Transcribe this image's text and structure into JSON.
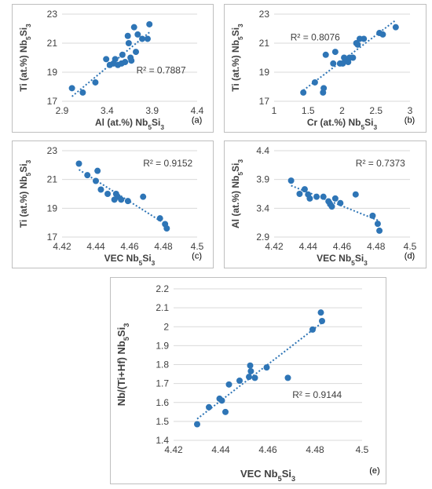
{
  "chart_data": [
    {
      "id": "a",
      "type": "scatter",
      "panel_label": "(a)",
      "xlabel": "Al (at.%) Nb5Si3",
      "ylabel": "Ti (at.%) Nb5Si3",
      "xlim": [
        2.9,
        4.4
      ],
      "ylim": [
        17,
        23
      ],
      "xticks": [
        "2.9",
        "3.4",
        "3.9",
        "4.4"
      ],
      "yticks": [
        "17",
        "19",
        "21",
        "23"
      ],
      "r2_label": "R² = 0.7887",
      "trendline": "linear",
      "points": [
        {
          "x": 3.01,
          "y": 17.9
        },
        {
          "x": 3.13,
          "y": 17.6
        },
        {
          "x": 3.27,
          "y": 18.3
        },
        {
          "x": 3.39,
          "y": 19.9
        },
        {
          "x": 3.43,
          "y": 19.5
        },
        {
          "x": 3.47,
          "y": 19.6
        },
        {
          "x": 3.49,
          "y": 19.9
        },
        {
          "x": 3.52,
          "y": 19.5
        },
        {
          "x": 3.56,
          "y": 19.6
        },
        {
          "x": 3.57,
          "y": 20.2
        },
        {
          "x": 3.6,
          "y": 19.7
        },
        {
          "x": 3.63,
          "y": 21.5
        },
        {
          "x": 3.64,
          "y": 21.0
        },
        {
          "x": 3.66,
          "y": 20.0
        },
        {
          "x": 3.67,
          "y": 19.8
        },
        {
          "x": 3.7,
          "y": 22.1
        },
        {
          "x": 3.72,
          "y": 20.4
        },
        {
          "x": 3.74,
          "y": 21.6
        },
        {
          "x": 3.79,
          "y": 21.3
        },
        {
          "x": 3.85,
          "y": 21.3
        },
        {
          "x": 3.87,
          "y": 22.3
        }
      ]
    },
    {
      "id": "b",
      "type": "scatter",
      "panel_label": "(b)",
      "xlabel": "Cr (at.%) Nb5Si3",
      "ylabel": "Ti (at.%) Nb5Si3",
      "xlim": [
        1,
        3
      ],
      "ylim": [
        17,
        23
      ],
      "xticks": [
        "1",
        "1.5",
        "2",
        "2.5",
        "3"
      ],
      "yticks": [
        "17",
        "19",
        "21",
        "23"
      ],
      "r2_label": "R² = 0.8076",
      "trendline": "linear",
      "points": [
        {
          "x": 1.43,
          "y": 17.6
        },
        {
          "x": 1.6,
          "y": 18.3
        },
        {
          "x": 1.72,
          "y": 17.6
        },
        {
          "x": 1.73,
          "y": 17.9
        },
        {
          "x": 1.76,
          "y": 20.2
        },
        {
          "x": 1.87,
          "y": 19.6
        },
        {
          "x": 1.9,
          "y": 20.4
        },
        {
          "x": 1.97,
          "y": 19.6
        },
        {
          "x": 2.01,
          "y": 19.6
        },
        {
          "x": 2.03,
          "y": 20.0
        },
        {
          "x": 2.06,
          "y": 19.9
        },
        {
          "x": 2.09,
          "y": 19.7
        },
        {
          "x": 2.11,
          "y": 20.0
        },
        {
          "x": 2.16,
          "y": 20.0
        },
        {
          "x": 2.21,
          "y": 21.0
        },
        {
          "x": 2.23,
          "y": 20.9
        },
        {
          "x": 2.26,
          "y": 21.3
        },
        {
          "x": 2.32,
          "y": 21.3
        },
        {
          "x": 2.55,
          "y": 21.7
        },
        {
          "x": 2.6,
          "y": 21.6
        },
        {
          "x": 2.79,
          "y": 22.1
        }
      ]
    },
    {
      "id": "c",
      "type": "scatter",
      "panel_label": "(c)",
      "xlabel": "VEC Nb5Si3",
      "ylabel": "Ti (at.%) Nb5Si3",
      "xlim": [
        4.42,
        4.5
      ],
      "ylim": [
        17,
        23
      ],
      "xticks": [
        "4.42",
        "4.44",
        "4.46",
        "4.48",
        "4.5"
      ],
      "yticks": [
        "17",
        "19",
        "21",
        "23"
      ],
      "r2_label": "R² = 0.9152",
      "trendline": "linear",
      "points": [
        {
          "x": 4.43,
          "y": 22.1
        },
        {
          "x": 4.435,
          "y": 21.3
        },
        {
          "x": 4.44,
          "y": 20.9
        },
        {
          "x": 4.441,
          "y": 21.6
        },
        {
          "x": 4.443,
          "y": 20.3
        },
        {
          "x": 4.447,
          "y": 20.0
        },
        {
          "x": 4.451,
          "y": 19.6
        },
        {
          "x": 4.452,
          "y": 20.0
        },
        {
          "x": 4.453,
          "y": 19.8
        },
        {
          "x": 4.455,
          "y": 19.6
        },
        {
          "x": 4.459,
          "y": 19.5
        },
        {
          "x": 4.468,
          "y": 19.8
        },
        {
          "x": 4.478,
          "y": 18.3
        },
        {
          "x": 4.481,
          "y": 17.9
        },
        {
          "x": 4.482,
          "y": 17.6
        }
      ]
    },
    {
      "id": "d",
      "type": "scatter",
      "panel_label": "(d)",
      "xlabel": "VEC Nb5Si3",
      "ylabel": "Al (at.%) Nb5Si3",
      "xlim": [
        4.42,
        4.5
      ],
      "ylim": [
        2.9,
        4.4
      ],
      "xticks": [
        "4.42",
        "4.44",
        "4.46",
        "4.48",
        "4.5"
      ],
      "yticks": [
        "2.9",
        "3.4",
        "3.9",
        "4.4"
      ],
      "r2_label": "R² = 0.7373",
      "trendline": "linear",
      "points": [
        {
          "x": 4.43,
          "y": 3.88
        },
        {
          "x": 4.435,
          "y": 3.65
        },
        {
          "x": 4.438,
          "y": 3.73
        },
        {
          "x": 4.44,
          "y": 3.64
        },
        {
          "x": 4.441,
          "y": 3.57
        },
        {
          "x": 4.445,
          "y": 3.6
        },
        {
          "x": 4.449,
          "y": 3.6
        },
        {
          "x": 4.452,
          "y": 3.52
        },
        {
          "x": 4.453,
          "y": 3.47
        },
        {
          "x": 4.454,
          "y": 3.43
        },
        {
          "x": 4.456,
          "y": 3.57
        },
        {
          "x": 4.459,
          "y": 3.49
        },
        {
          "x": 4.468,
          "y": 3.64
        },
        {
          "x": 4.478,
          "y": 3.27
        },
        {
          "x": 4.481,
          "y": 3.13
        },
        {
          "x": 4.482,
          "y": 3.01
        }
      ]
    },
    {
      "id": "e",
      "type": "scatter",
      "panel_label": "(e)",
      "xlabel": "VEC Nb5Si3",
      "ylabel": "Nb/(Ti+Hf) Nb5Si3",
      "xlim": [
        4.42,
        4.5
      ],
      "ylim": [
        1.4,
        2.2
      ],
      "xticks": [
        "4.42",
        "4.44",
        "4.46",
        "4.48",
        "4.5"
      ],
      "yticks": [
        "1.4",
        "1.5",
        "1.6",
        "1.7",
        "1.8",
        "1.9",
        "2",
        "2.1",
        "2.2"
      ],
      "r2_label": "R² = 0.9144",
      "trendline": "linear",
      "points": [
        {
          "x": 4.43,
          "y": 1.485
        },
        {
          "x": 4.435,
          "y": 1.575
        },
        {
          "x": 4.4395,
          "y": 1.62
        },
        {
          "x": 4.4405,
          "y": 1.61
        },
        {
          "x": 4.442,
          "y": 1.55
        },
        {
          "x": 4.4435,
          "y": 1.695
        },
        {
          "x": 4.448,
          "y": 1.715
        },
        {
          "x": 4.452,
          "y": 1.735
        },
        {
          "x": 4.4525,
          "y": 1.795
        },
        {
          "x": 4.4528,
          "y": 1.765
        },
        {
          "x": 4.4545,
          "y": 1.73
        },
        {
          "x": 4.4595,
          "y": 1.785
        },
        {
          "x": 4.4685,
          "y": 1.73
        },
        {
          "x": 4.479,
          "y": 1.985
        },
        {
          "x": 4.4825,
          "y": 2.075
        },
        {
          "x": 4.483,
          "y": 2.03
        }
      ]
    }
  ],
  "colors": {
    "marker": "#2e75b6",
    "trendline": "#2e75b6",
    "grid": "#d9d9d9",
    "text": "#404040",
    "panel_border": "#bfbfbf"
  }
}
